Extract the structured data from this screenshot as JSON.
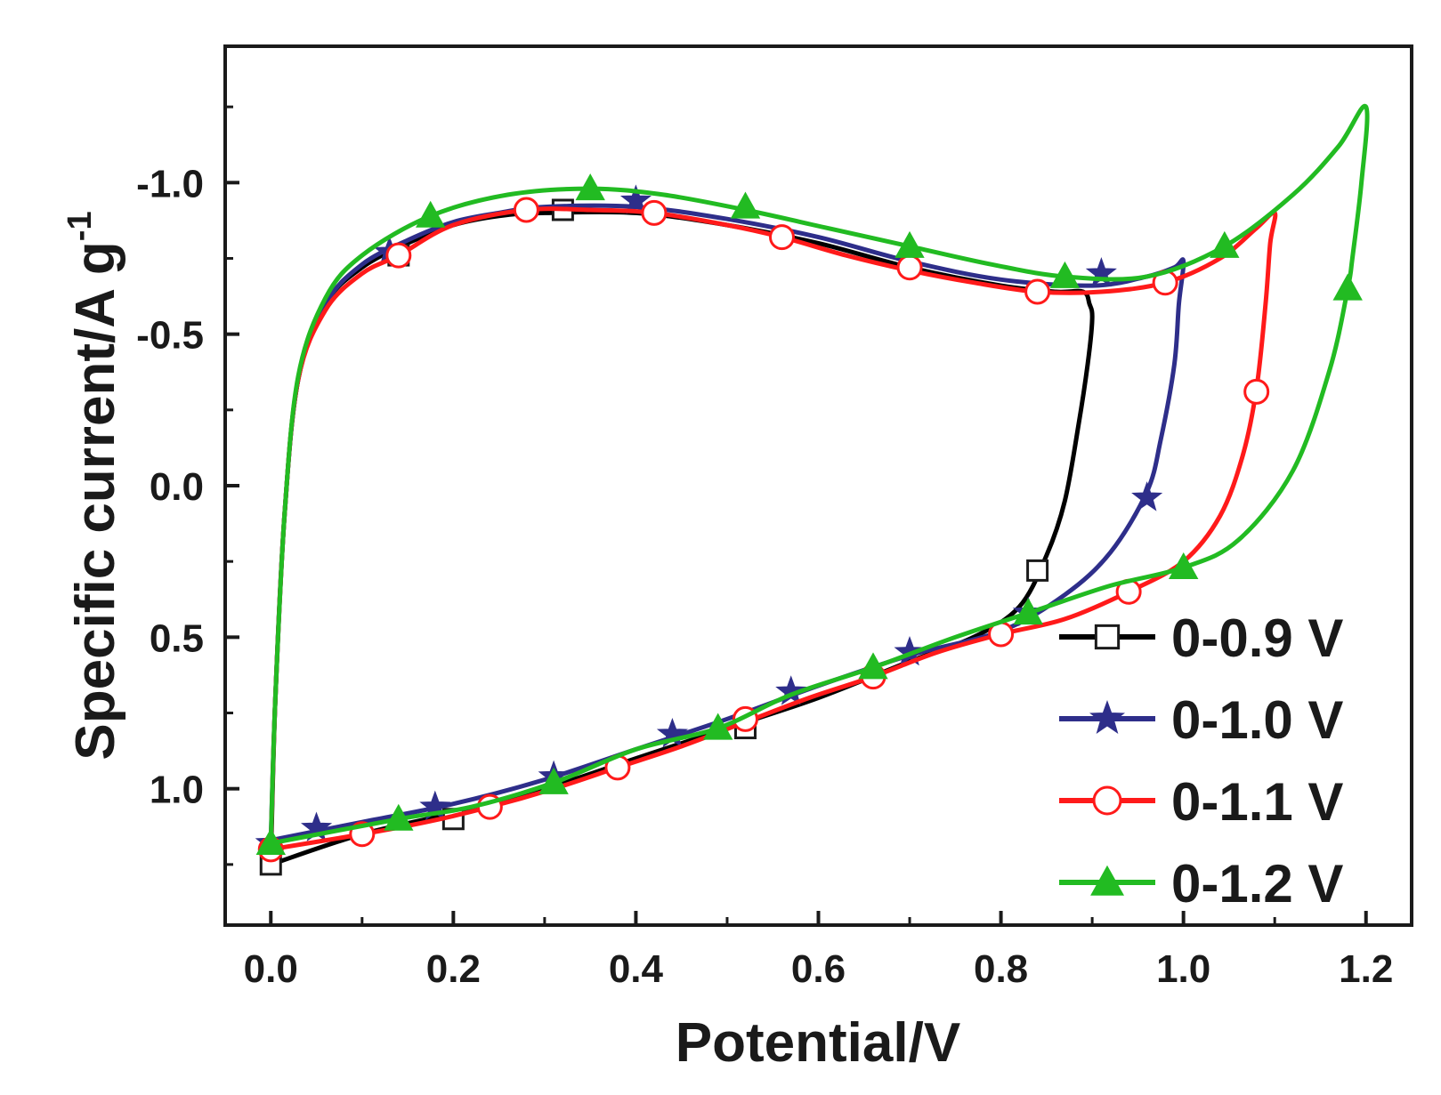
{
  "chart_data": {
    "type": "line",
    "title": "",
    "xlabel": "Potential/V",
    "ylabel": "Specific current/A g",
    "ylabel_superscript": "-1",
    "xlim": [
      -0.05,
      1.25
    ],
    "ylim": [
      -1.45,
      1.45
    ],
    "y_inverted": true,
    "x_ticks": [
      {
        "value": 0.0,
        "label": "0.0"
      },
      {
        "value": 0.2,
        "label": "0.2"
      },
      {
        "value": 0.4,
        "label": "0.4"
      },
      {
        "value": 0.6,
        "label": "0.6"
      },
      {
        "value": 0.8,
        "label": "0.8"
      },
      {
        "value": 1.0,
        "label": "1.0"
      },
      {
        "value": 1.2,
        "label": "1.2"
      }
    ],
    "y_ticks": [
      {
        "value": -1.0,
        "label": "-1.0"
      },
      {
        "value": -0.5,
        "label": "-0.5"
      },
      {
        "value": 0.0,
        "label": "0.0"
      },
      {
        "value": 0.5,
        "label": "0.5"
      },
      {
        "value": 1.0,
        "label": "1.0"
      }
    ],
    "grid": false,
    "legend_position": "bottom-right",
    "series": [
      {
        "name": "0-0.9 V",
        "color": "#000000",
        "marker": "square",
        "points": [
          [
            0.0,
            1.25
          ],
          [
            0.005,
            0.7
          ],
          [
            0.015,
            0.1
          ],
          [
            0.03,
            -0.35
          ],
          [
            0.06,
            -0.6
          ],
          [
            0.1,
            -0.72
          ],
          [
            0.15,
            -0.8
          ],
          [
            0.2,
            -0.86
          ],
          [
            0.25,
            -0.89
          ],
          [
            0.3,
            -0.9
          ],
          [
            0.4,
            -0.9
          ],
          [
            0.5,
            -0.86
          ],
          [
            0.6,
            -0.8
          ],
          [
            0.7,
            -0.72
          ],
          [
            0.8,
            -0.66
          ],
          [
            0.86,
            -0.64
          ],
          [
            0.89,
            -0.64
          ],
          [
            0.897,
            -0.6
          ],
          [
            0.9,
            -0.55
          ],
          [
            0.895,
            -0.4
          ],
          [
            0.885,
            -0.2
          ],
          [
            0.87,
            0.05
          ],
          [
            0.85,
            0.23
          ],
          [
            0.82,
            0.4
          ],
          [
            0.77,
            0.5
          ],
          [
            0.7,
            0.58
          ],
          [
            0.6,
            0.7
          ],
          [
            0.5,
            0.8
          ],
          [
            0.4,
            0.9
          ],
          [
            0.3,
            1.0
          ],
          [
            0.2,
            1.08
          ],
          [
            0.1,
            1.15
          ],
          [
            0.0,
            1.25
          ]
        ],
        "markers": [
          [
            0.0,
            1.25
          ],
          [
            0.14,
            -0.76
          ],
          [
            0.32,
            -0.91
          ],
          [
            0.84,
            0.28
          ],
          [
            0.52,
            0.8
          ],
          [
            0.2,
            1.1
          ]
        ]
      },
      {
        "name": "0-1.0 V",
        "color": "#2e2e8a",
        "marker": "star",
        "points": [
          [
            0.0,
            1.17
          ],
          [
            0.005,
            0.7
          ],
          [
            0.015,
            0.1
          ],
          [
            0.03,
            -0.35
          ],
          [
            0.06,
            -0.6
          ],
          [
            0.1,
            -0.73
          ],
          [
            0.15,
            -0.81
          ],
          [
            0.2,
            -0.87
          ],
          [
            0.25,
            -0.9
          ],
          [
            0.3,
            -0.92
          ],
          [
            0.4,
            -0.92
          ],
          [
            0.5,
            -0.88
          ],
          [
            0.6,
            -0.82
          ],
          [
            0.7,
            -0.74
          ],
          [
            0.8,
            -0.68
          ],
          [
            0.9,
            -0.66
          ],
          [
            0.96,
            -0.69
          ],
          [
            0.99,
            -0.72
          ],
          [
            1.0,
            -0.74
          ],
          [
            0.995,
            -0.6
          ],
          [
            0.99,
            -0.4
          ],
          [
            0.975,
            -0.15
          ],
          [
            0.96,
            0.02
          ],
          [
            0.92,
            0.22
          ],
          [
            0.87,
            0.36
          ],
          [
            0.8,
            0.48
          ],
          [
            0.7,
            0.56
          ],
          [
            0.6,
            0.66
          ],
          [
            0.5,
            0.77
          ],
          [
            0.4,
            0.87
          ],
          [
            0.3,
            0.97
          ],
          [
            0.2,
            1.05
          ],
          [
            0.1,
            1.11
          ],
          [
            0.0,
            1.17
          ]
        ],
        "markers": [
          [
            0.0,
            1.18
          ],
          [
            0.13,
            -0.77
          ],
          [
            0.4,
            -0.94
          ],
          [
            0.91,
            -0.7
          ],
          [
            0.96,
            0.04
          ],
          [
            0.83,
            0.42
          ],
          [
            0.7,
            0.55
          ],
          [
            0.57,
            0.68
          ],
          [
            0.44,
            0.82
          ],
          [
            0.31,
            0.96
          ],
          [
            0.18,
            1.06
          ],
          [
            0.05,
            1.13
          ]
        ]
      },
      {
        "name": "0-1.1 V",
        "color": "#ff1a1a",
        "marker": "circle",
        "points": [
          [
            0.0,
            1.2
          ],
          [
            0.005,
            0.7
          ],
          [
            0.015,
            0.1
          ],
          [
            0.03,
            -0.35
          ],
          [
            0.06,
            -0.58
          ],
          [
            0.1,
            -0.7
          ],
          [
            0.14,
            -0.76
          ],
          [
            0.2,
            -0.86
          ],
          [
            0.28,
            -0.91
          ],
          [
            0.35,
            -0.91
          ],
          [
            0.42,
            -0.9
          ],
          [
            0.5,
            -0.86
          ],
          [
            0.56,
            -0.82
          ],
          [
            0.63,
            -0.76
          ],
          [
            0.7,
            -0.71
          ],
          [
            0.77,
            -0.67
          ],
          [
            0.84,
            -0.64
          ],
          [
            0.91,
            -0.64
          ],
          [
            0.98,
            -0.67
          ],
          [
            1.04,
            -0.75
          ],
          [
            1.08,
            -0.85
          ],
          [
            1.1,
            -0.9
          ],
          [
            1.095,
            -0.8
          ],
          [
            1.09,
            -0.6
          ],
          [
            1.08,
            -0.32
          ],
          [
            1.065,
            -0.1
          ],
          [
            1.04,
            0.1
          ],
          [
            1.0,
            0.25
          ],
          [
            0.94,
            0.35
          ],
          [
            0.87,
            0.44
          ],
          [
            0.8,
            0.49
          ],
          [
            0.73,
            0.55
          ],
          [
            0.66,
            0.63
          ],
          [
            0.59,
            0.7
          ],
          [
            0.52,
            0.78
          ],
          [
            0.45,
            0.86
          ],
          [
            0.38,
            0.93
          ],
          [
            0.31,
            1.0
          ],
          [
            0.24,
            1.06
          ],
          [
            0.17,
            1.11
          ],
          [
            0.1,
            1.15
          ],
          [
            0.0,
            1.2
          ]
        ],
        "markers": [
          [
            0.0,
            1.2
          ],
          [
            0.14,
            -0.76
          ],
          [
            0.28,
            -0.91
          ],
          [
            0.42,
            -0.9
          ],
          [
            0.56,
            -0.82
          ],
          [
            0.7,
            -0.72
          ],
          [
            0.84,
            -0.64
          ],
          [
            0.98,
            -0.67
          ],
          [
            1.08,
            -0.31
          ],
          [
            0.94,
            0.35
          ],
          [
            0.8,
            0.49
          ],
          [
            0.66,
            0.63
          ],
          [
            0.52,
            0.77
          ],
          [
            0.38,
            0.93
          ],
          [
            0.24,
            1.06
          ],
          [
            0.1,
            1.15
          ]
        ]
      },
      {
        "name": "0-1.2 V",
        "color": "#22bb22",
        "marker": "triangle",
        "points": [
          [
            0.0,
            1.18
          ],
          [
            0.005,
            0.7
          ],
          [
            0.015,
            0.1
          ],
          [
            0.03,
            -0.36
          ],
          [
            0.06,
            -0.62
          ],
          [
            0.1,
            -0.76
          ],
          [
            0.175,
            -0.89
          ],
          [
            0.26,
            -0.96
          ],
          [
            0.35,
            -0.98
          ],
          [
            0.43,
            -0.96
          ],
          [
            0.52,
            -0.91
          ],
          [
            0.61,
            -0.85
          ],
          [
            0.7,
            -0.79
          ],
          [
            0.79,
            -0.73
          ],
          [
            0.87,
            -0.69
          ],
          [
            0.96,
            -0.69
          ],
          [
            1.045,
            -0.79
          ],
          [
            1.12,
            -0.96
          ],
          [
            1.17,
            -1.12
          ],
          [
            1.2,
            -1.25
          ],
          [
            1.195,
            -1.0
          ],
          [
            1.185,
            -0.75
          ],
          [
            1.18,
            -0.65
          ],
          [
            1.16,
            -0.38
          ],
          [
            1.12,
            -0.05
          ],
          [
            1.06,
            0.18
          ],
          [
            1.0,
            0.27
          ],
          [
            0.92,
            0.33
          ],
          [
            0.84,
            0.41
          ],
          [
            0.75,
            0.5
          ],
          [
            0.66,
            0.6
          ],
          [
            0.57,
            0.69
          ],
          [
            0.49,
            0.8
          ],
          [
            0.4,
            0.87
          ],
          [
            0.31,
            0.98
          ],
          [
            0.22,
            1.06
          ],
          [
            0.14,
            1.1
          ],
          [
            0.0,
            1.18
          ]
        ],
        "markers": [
          [
            0.0,
            1.18
          ],
          [
            0.175,
            -0.89
          ],
          [
            0.35,
            -0.98
          ],
          [
            0.52,
            -0.92
          ],
          [
            0.7,
            -0.79
          ],
          [
            0.87,
            -0.69
          ],
          [
            1.045,
            -0.79
          ],
          [
            1.18,
            -0.65
          ],
          [
            1.0,
            0.27
          ],
          [
            0.83,
            0.42
          ],
          [
            0.66,
            0.6
          ],
          [
            0.49,
            0.8
          ],
          [
            0.31,
            0.98
          ],
          [
            0.14,
            1.1
          ]
        ]
      }
    ]
  }
}
